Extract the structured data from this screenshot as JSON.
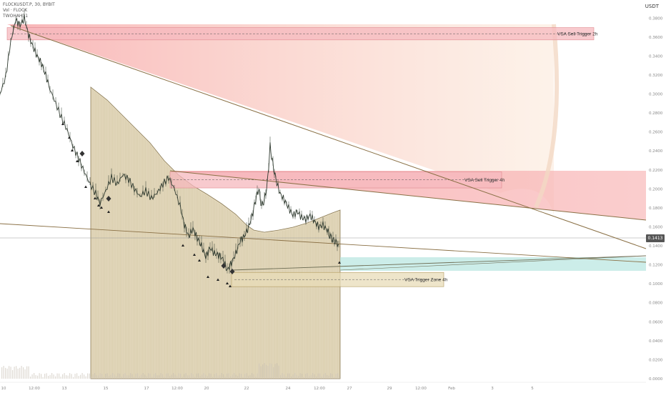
{
  "legend": {
    "symbol": "FLOCKUSDT.P, 30, BYBIT",
    "line2": "Vol · FLOCK",
    "line3": "TWOHAH11"
  },
  "currency": "USDT",
  "chart_data": {
    "type": "candlestick",
    "title": "FLOCKUSDT.P, 30, BYBIT",
    "ylim": [
      0.0,
      0.39
    ],
    "y_ticks": [
      "0.3800",
      "0.3600",
      "0.3400",
      "0.3200",
      "0.3000",
      "0.2800",
      "0.2600",
      "0.2400",
      "0.2200",
      "0.2000",
      "0.1800",
      "0.1600",
      "0.1400",
      "0.1200",
      "0.1000",
      "0.0800",
      "0.0600",
      "0.0400",
      "0.0200",
      "0.0000"
    ],
    "x_ticks": [
      "10",
      "12:00",
      "13",
      "15",
      "17",
      "12:00",
      "20",
      "22",
      "24",
      "12:00",
      "27",
      "29",
      "12:00",
      "Feb",
      "3",
      "5"
    ],
    "last_price": "0.1413",
    "price_levels": [
      0.1413,
      0.14
    ],
    "price_path": [
      [
        0,
        0.3
      ],
      [
        8,
        0.318
      ],
      [
        15,
        0.355
      ],
      [
        22,
        0.378
      ],
      [
        28,
        0.372
      ],
      [
        34,
        0.38
      ],
      [
        40,
        0.362
      ],
      [
        46,
        0.35
      ],
      [
        52,
        0.34
      ],
      [
        58,
        0.332
      ],
      [
        64,
        0.32
      ],
      [
        70,
        0.305
      ],
      [
        78,
        0.29
      ],
      [
        86,
        0.275
      ],
      [
        94,
        0.262
      ],
      [
        102,
        0.245
      ],
      [
        110,
        0.232
      ],
      [
        118,
        0.218
      ],
      [
        126,
        0.205
      ],
      [
        134,
        0.195
      ],
      [
        140,
        0.185
      ],
      [
        148,
        0.198
      ],
      [
        156,
        0.212
      ],
      [
        164,
        0.205
      ],
      [
        172,
        0.215
      ],
      [
        180,
        0.21
      ],
      [
        188,
        0.2
      ],
      [
        196,
        0.192
      ],
      [
        204,
        0.198
      ],
      [
        212,
        0.19
      ],
      [
        220,
        0.196
      ],
      [
        228,
        0.205
      ],
      [
        236,
        0.212
      ],
      [
        244,
        0.2
      ],
      [
        252,
        0.182
      ],
      [
        258,
        0.162
      ],
      [
        264,
        0.15
      ],
      [
        270,
        0.158
      ],
      [
        276,
        0.148
      ],
      [
        282,
        0.14
      ],
      [
        288,
        0.128
      ],
      [
        294,
        0.138
      ],
      [
        300,
        0.132
      ],
      [
        306,
        0.13
      ],
      [
        312,
        0.126
      ],
      [
        318,
        0.114
      ],
      [
        324,
        0.122
      ],
      [
        330,
        0.132
      ],
      [
        336,
        0.145
      ],
      [
        342,
        0.15
      ],
      [
        348,
        0.16
      ],
      [
        354,
        0.175
      ],
      [
        358,
        0.19
      ],
      [
        362,
        0.2
      ],
      [
        366,
        0.182
      ],
      [
        370,
        0.188
      ],
      [
        374,
        0.205
      ],
      [
        378,
        0.245
      ],
      [
        382,
        0.225
      ],
      [
        386,
        0.21
      ],
      [
        392,
        0.195
      ],
      [
        398,
        0.188
      ],
      [
        404,
        0.18
      ],
      [
        410,
        0.172
      ],
      [
        416,
        0.176
      ],
      [
        422,
        0.17
      ],
      [
        428,
        0.168
      ],
      [
        434,
        0.172
      ],
      [
        440,
        0.166
      ],
      [
        446,
        0.16
      ],
      [
        452,
        0.162
      ],
      [
        458,
        0.156
      ],
      [
        462,
        0.15
      ],
      [
        466,
        0.146
      ],
      [
        470,
        0.144
      ],
      [
        474,
        0.141
      ]
    ],
    "zones": [
      {
        "label": "VSA Sell Trigger 2h",
        "top": 0.37,
        "bottom": 0.357,
        "x_start": 10,
        "x_end": 831,
        "color": "#f6b8bd"
      },
      {
        "label": "VSA Sell Trigger 4h",
        "top": 0.218,
        "bottom": 0.201,
        "x_start": 238,
        "x_end": 702,
        "color": "#f6b8bd"
      },
      {
        "label": "VSA Trigger Zone 4h",
        "top": 0.112,
        "bottom": 0.097,
        "x_start": 324,
        "x_end": 621,
        "color": "#e8dcb8"
      }
    ]
  }
}
